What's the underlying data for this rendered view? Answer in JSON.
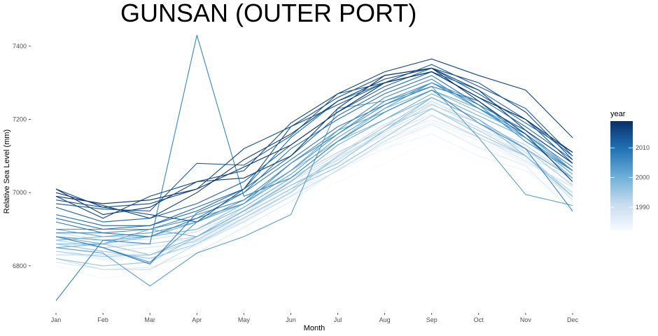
{
  "chart_data": {
    "type": "line",
    "title": "GUNSAN (OUTER PORT)",
    "xlabel": "Month",
    "ylabel": "Relative Sea Level (mm)",
    "categories": [
      "Jan",
      "Feb",
      "Mar",
      "Apr",
      "May",
      "Jun",
      "Jul",
      "Aug",
      "Sep",
      "Oct",
      "Nov",
      "Dec"
    ],
    "ylim": [
      6685,
      7440
    ],
    "yticks": [
      6800,
      7000,
      7200,
      7400
    ],
    "grid": false,
    "legend": {
      "title": "year",
      "position": "right",
      "type": "colorbar",
      "range": [
        1982,
        2019
      ],
      "ticks": [
        1990,
        2000,
        2010
      ],
      "colors": [
        "#f7fbff",
        "#c6dbef",
        "#6baed6",
        "#2171b5",
        "#08306b"
      ]
    },
    "series": [
      {
        "year": 1982,
        "values": [
          6840,
          6822,
          6821,
          6830,
          6899,
          6965,
          7030,
          7080,
          7143,
          7085,
          7030,
          6993
        ]
      },
      {
        "year": 1983,
        "values": [
          6800,
          6765,
          6784,
          6873,
          6931,
          6989,
          7066,
          7119,
          7184,
          7134,
          7078,
          6959
        ]
      },
      {
        "year": 1984,
        "values": [
          6850,
          6830,
          6836,
          6878,
          6930,
          7000,
          7060,
          7120,
          7160,
          7100,
          7060,
          6975
        ]
      },
      {
        "year": 1985,
        "values": [
          6850,
          6816,
          6822,
          6854,
          6923,
          6991,
          7077,
          7141,
          7192,
          7142,
          7081,
          7019
        ]
      },
      {
        "year": 1986,
        "values": [
          6840,
          6818,
          6828,
          6865,
          6923,
          7001,
          7097,
          7155,
          7199,
          7151,
          7093,
          6987
        ]
      },
      {
        "year": 1987,
        "values": [
          6810,
          6790,
          6796,
          6836,
          6905,
          6976,
          7063,
          7133,
          7187,
          7123,
          7073,
          6947
        ]
      },
      {
        "year": 1988,
        "values": [
          6860,
          6838,
          6851,
          6866,
          6932,
          7003,
          7087,
          7161,
          7213,
          7152,
          7086,
          7015
        ]
      },
      {
        "year": 1989,
        "values": [
          6880,
          6858,
          6861,
          6873,
          6940,
          7030,
          7096,
          7166,
          7228,
          7177,
          7102,
          7037
        ]
      },
      {
        "year": 1990,
        "values": [
          6890,
          6870,
          6872,
          6893,
          6952,
          7033,
          7104,
          7187,
          7243,
          7177,
          7118,
          7039
        ]
      },
      {
        "year": 1991,
        "values": [
          6820,
          6790,
          6790,
          6860,
          6920,
          6990,
          7060,
          7140,
          7210,
          7150,
          7100,
          6980
        ]
      },
      {
        "year": 1992,
        "values": [
          6830,
          6830,
          6830,
          6880,
          6950,
          7020,
          7090,
          7170,
          7250,
          7190,
          7110,
          6990
        ]
      },
      {
        "year": 1993,
        "values": [
          6870,
          6850,
          6860,
          6880,
          6960,
          7040,
          7110,
          7170,
          7240,
          7190,
          7130,
          7040
        ]
      },
      {
        "year": 1994,
        "values": [
          6840,
          6825,
          6830,
          6870,
          6940,
          7010,
          7100,
          7180,
          7230,
          7170,
          7100,
          7000
        ]
      },
      {
        "year": 1995,
        "values": [
          6860,
          6840,
          6820,
          6860,
          6930,
          7000,
          7100,
          7180,
          7260,
          7200,
          7120,
          7020
        ]
      },
      {
        "year": 1996,
        "values": [
          6820,
          6800,
          6810,
          6880,
          6940,
          7010,
          7070,
          7150,
          7230,
          7160,
          7100,
          6990
        ]
      },
      {
        "year": 1997,
        "values": [
          6860,
          6860,
          6830,
          6880,
          6950,
          7020,
          7080,
          7170,
          7260,
          7200,
          7100,
          6990
        ]
      },
      {
        "year": 1998,
        "values": [
          6870,
          6880,
          6880,
          6900,
          6970,
          7060,
          7140,
          7230,
          7280,
          7220,
          7160,
          7060
        ]
      },
      {
        "year": 1999,
        "values": [
          6880,
          6860,
          6880,
          6900,
          6960,
          7040,
          7140,
          7200,
          7260,
          7200,
          7120,
          7040
        ]
      },
      {
        "year": 2000,
        "values": [
          6850,
          6860,
          6900,
          6880,
          6950,
          7030,
          7130,
          7200,
          7270,
          7210,
          7150,
          7040
        ]
      },
      {
        "year": 2001,
        "values": [
          6880,
          6870,
          6880,
          6920,
          6980,
          7060,
          7170,
          7220,
          7280,
          7230,
          7170,
          7060
        ]
      },
      {
        "year": 2002,
        "values": [
          6900,
          6880,
          6890,
          6920,
          6970,
          7050,
          7150,
          7230,
          7300,
          7250,
          7160,
          7060
        ]
      },
      {
        "year": 2003,
        "values": [
          6850,
          6835,
          6745,
          6835,
          6880,
          6940,
          7230,
          7250,
          7290,
          7150,
          6995,
          6965
        ]
      },
      {
        "year": 2004,
        "values": [
          6880,
          6850,
          6810,
          6920,
          6980,
          7060,
          7160,
          7240,
          7300,
          7230,
          7150,
          7050
        ]
      },
      {
        "year": 2005,
        "values": [
          6900,
          6900,
          6900,
          6930,
          6970,
          7080,
          7160,
          7250,
          7300,
          7240,
          7140,
          7060
        ]
      },
      {
        "year": 2006,
        "values": [
          6890,
          6890,
          6900,
          6940,
          6980,
          7080,
          7170,
          7260,
          7310,
          7230,
          7160,
          7070
        ]
      },
      {
        "year": 2007,
        "values": [
          6705,
          6870,
          6860,
          7430,
          6990,
          7040,
          7140,
          7220,
          7280,
          7190,
          7120,
          6950
        ]
      },
      {
        "year": 2008,
        "values": [
          6880,
          6850,
          6805,
          6945,
          7000,
          7090,
          7180,
          7240,
          7290,
          7250,
          7150,
          7060
        ]
      },
      {
        "year": 2009,
        "values": [
          6920,
          6890,
          6880,
          6930,
          7000,
          7120,
          7200,
          7270,
          7320,
          7240,
          7170,
          7080
        ]
      },
      {
        "year": 2010,
        "values": [
          6930,
          6900,
          6910,
          6960,
          7010,
          7150,
          7250,
          7300,
          7330,
          7260,
          7180,
          7090
        ]
      },
      {
        "year": 2011,
        "values": [
          6940,
          6910,
          6910,
          6950,
          7010,
          7100,
          7210,
          7280,
          7330,
          7280,
          7200,
          7100
        ]
      },
      {
        "year": 2012,
        "values": [
          6960,
          6920,
          6930,
          6970,
          7030,
          7130,
          7220,
          7290,
          7340,
          7270,
          7190,
          7110
        ]
      },
      {
        "year": 2013,
        "values": [
          6970,
          6955,
          6950,
          7080,
          7075,
          7155,
          7270,
          7300,
          7350,
          7290,
          7230,
          7100
        ]
      },
      {
        "year": 2014,
        "values": [
          6980,
          6960,
          6940,
          6920,
          7010,
          7180,
          7240,
          7300,
          7330,
          7260,
          7200,
          7080
        ]
      },
      {
        "year": 2015,
        "values": [
          7010,
          6960,
          6970,
          7010,
          7120,
          7180,
          7260,
          7320,
          7340,
          7300,
          7220,
          7090
        ]
      },
      {
        "year": 2016,
        "values": [
          6990,
          6930,
          6990,
          7030,
          7060,
          7190,
          7270,
          7330,
          7365,
          7320,
          7280,
          7150
        ]
      },
      {
        "year": 2017,
        "values": [
          7000,
          6965,
          6930,
          7000,
          7090,
          7160,
          7250,
          7310,
          7340,
          7280,
          7170,
          7080
        ]
      },
      {
        "year": 2018,
        "values": [
          7010,
          6940,
          6960,
          7030,
          7040,
          7100,
          7230,
          7320,
          7340,
          7250,
          7160,
          7030
        ]
      },
      {
        "year": 2019,
        "values": [
          6990,
          6970,
          6980,
          7010,
          7070,
          7130,
          7220,
          7300,
          7330,
          7260,
          7200,
          7110
        ]
      }
    ]
  }
}
